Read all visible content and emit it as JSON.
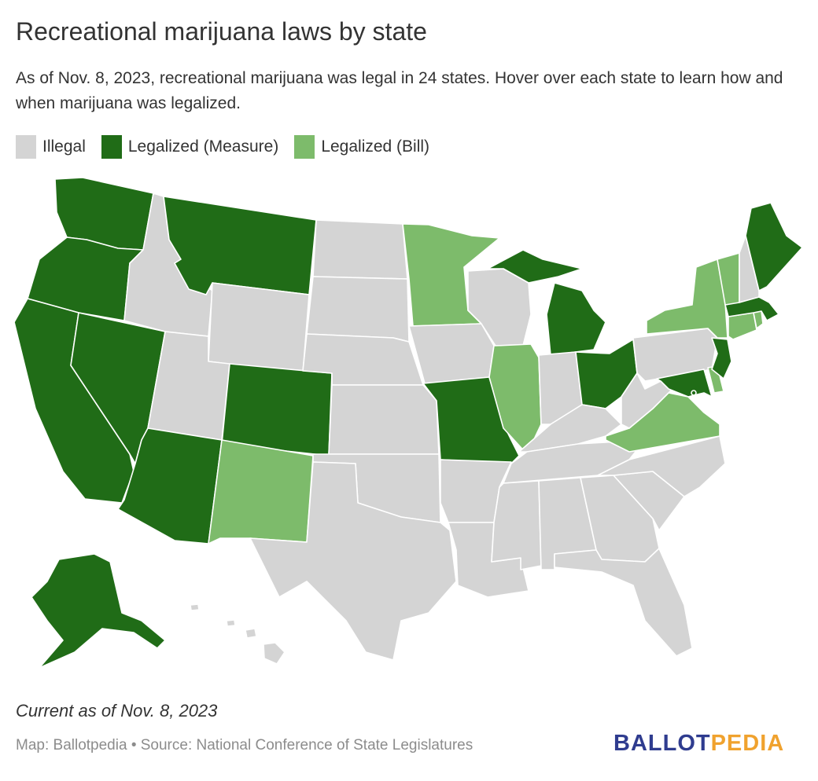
{
  "title": "Recreational marijuana laws by state",
  "description": "As of Nov. 8, 2023, recreational marijuana was legal in 24 states. Hover over each state to learn how and when marijuana was legalized.",
  "legend": [
    {
      "label": "Illegal",
      "color": "#d4d4d4"
    },
    {
      "label": "Legalized (Measure)",
      "color": "#206c17"
    },
    {
      "label": "Legalized (Bill)",
      "color": "#7dbb6b"
    }
  ],
  "colors": {
    "Illegal": "#d4d4d4",
    "Measure": "#206c17",
    "Bill": "#7dbb6b"
  },
  "states": {
    "WA": "Measure",
    "OR": "Measure",
    "CA": "Measure",
    "NV": "Measure",
    "AK": "Measure",
    "MT": "Measure",
    "CO": "Measure",
    "AZ": "Measure",
    "MO": "Measure",
    "MI": "Measure",
    "OH": "Measure",
    "ME": "Measure",
    "MA": "Measure",
    "NJ": "Measure",
    "MD": "Measure",
    "DC": "Measure",
    "NM": "Bill",
    "MN": "Bill",
    "IL": "Bill",
    "NY": "Bill",
    "VT": "Bill",
    "CT": "Bill",
    "RI": "Bill",
    "VA": "Bill",
    "DE": "Bill",
    "ID": "Illegal",
    "UT": "Illegal",
    "WY": "Illegal",
    "ND": "Illegal",
    "SD": "Illegal",
    "NE": "Illegal",
    "KS": "Illegal",
    "OK": "Illegal",
    "TX": "Illegal",
    "IA": "Illegal",
    "AR": "Illegal",
    "LA": "Illegal",
    "WI": "Illegal",
    "IN": "Illegal",
    "KY": "Illegal",
    "TN": "Illegal",
    "MS": "Illegal",
    "AL": "Illegal",
    "GA": "Illegal",
    "FL": "Illegal",
    "SC": "Illegal",
    "NC": "Illegal",
    "WV": "Illegal",
    "PA": "Illegal",
    "NH": "Illegal",
    "HI": "Illegal"
  },
  "footer": {
    "current": "Current as of Nov. 8, 2023",
    "credit": "Map: Ballotpedia • Source: National Conference of State Legislatures",
    "logo_part1": "BALLOT",
    "logo_part2": "PEDIA"
  }
}
